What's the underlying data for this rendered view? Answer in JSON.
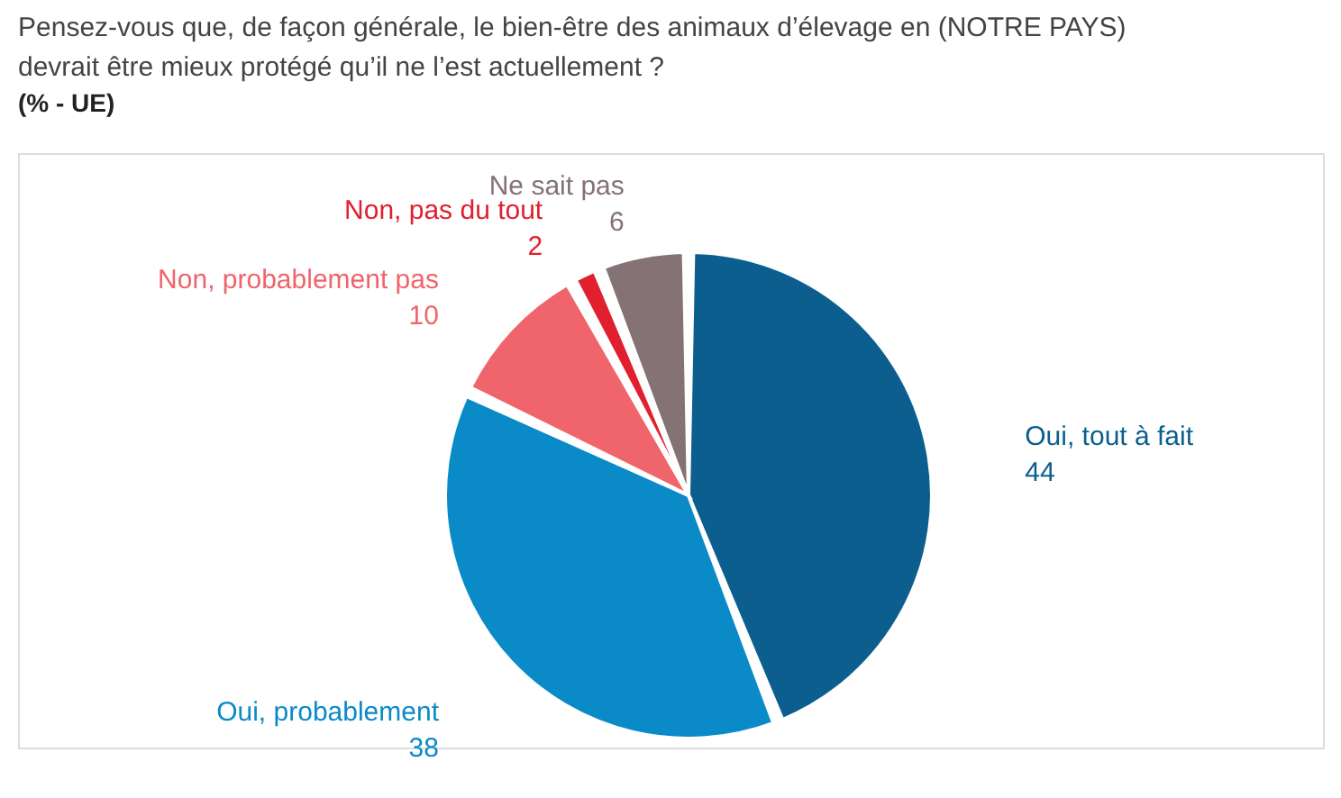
{
  "chart_data": {
    "type": "pie",
    "title": "Pensez-vous que, de façon générale, le bien-être des animaux d’élevage en (NOTRE PAYS) devrait être mieux protégé qu’il ne l’est actuellement ?",
    "subtitle": "(% - UE)",
    "categories": [
      "Oui, tout à fait",
      "Oui, probablement",
      "Non, probablement pas",
      "Non, pas du tout",
      "Ne sait pas"
    ],
    "values": [
      44,
      38,
      10,
      2,
      6
    ],
    "colors": [
      "#0b5e8e",
      "#0a8bc8",
      "#f0646c",
      "#e0202f",
      "#857275"
    ],
    "data_labels": true,
    "legend": false
  }
}
